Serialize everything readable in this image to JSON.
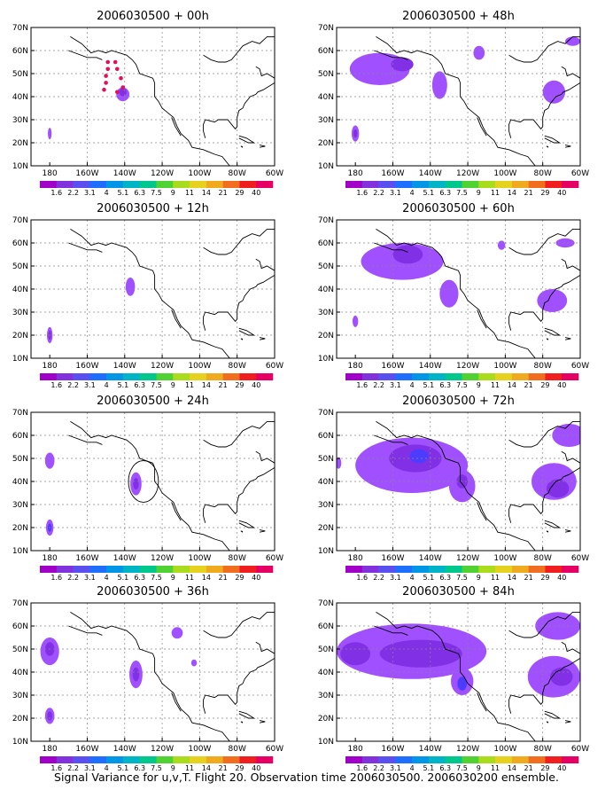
{
  "caption": "Signal Variance for u,v,T. Flight 20. Observation time 2006030500. 2006030200 ensemble.",
  "axes": {
    "x_ticks": [
      "180",
      "160W",
      "140W",
      "120W",
      "100W",
      "80W",
      "60W"
    ],
    "x_values": [
      180,
      200,
      220,
      240,
      260,
      280,
      300
    ],
    "y_ticks": [
      "10N",
      "20N",
      "30N",
      "40N",
      "50N",
      "60N",
      "70N"
    ],
    "y_values": [
      10,
      20,
      30,
      40,
      50,
      60,
      70
    ],
    "xlim": [
      170,
      300
    ],
    "ylim": [
      10,
      70
    ],
    "grid": true
  },
  "colorbar": {
    "labels": [
      "1.6",
      "2.2",
      "3.1",
      "4",
      "5.1",
      "6.3",
      "7.5",
      "9",
      "11",
      "14",
      "21",
      "29",
      "40"
    ],
    "colors": [
      "#a000c8",
      "#8232dc",
      "#5a50f0",
      "#1e6eff",
      "#0096e6",
      "#00b4c8",
      "#00c88c",
      "#50d232",
      "#aadc1e",
      "#e6d21e",
      "#f0aa1e",
      "#f06e1e",
      "#f01e1e",
      "#e60064"
    ]
  },
  "chart_data": [
    {
      "type": "heatmap",
      "title": "2006030500 + 00h",
      "blobs": [
        {
          "lon": 180,
          "lat": 24,
          "rx": 1,
          "ry": 2.5,
          "level": 1
        },
        {
          "lon": 219,
          "lat": 41,
          "rx": 3.5,
          "ry": 3,
          "level": 1
        },
        {
          "lon": 219,
          "lat": 42,
          "rx": 2,
          "ry": 1.8,
          "level": 2
        }
      ],
      "markers": [
        {
          "lon": 211,
          "lat": 55
        },
        {
          "lon": 211,
          "lat": 52
        },
        {
          "lon": 210,
          "lat": 49
        },
        {
          "lon": 210,
          "lat": 46
        },
        {
          "lon": 209,
          "lat": 43
        },
        {
          "lon": 215,
          "lat": 55
        },
        {
          "lon": 216,
          "lat": 52
        },
        {
          "lon": 218,
          "lat": 48
        },
        {
          "lon": 219,
          "lat": 44
        },
        {
          "lon": 216,
          "lat": 42
        }
      ]
    },
    {
      "type": "heatmap",
      "title": "2006030500 + 12h",
      "blobs": [
        {
          "lon": 180,
          "lat": 20,
          "rx": 1.5,
          "ry": 3.5,
          "level": 1
        },
        {
          "lon": 180,
          "lat": 20,
          "rx": 0.8,
          "ry": 2,
          "level": 2
        },
        {
          "lon": 223,
          "lat": 41,
          "rx": 2.5,
          "ry": 4,
          "level": 1
        }
      ],
      "markers": []
    },
    {
      "type": "heatmap",
      "title": "2006030500 + 24h",
      "blobs": [
        {
          "lon": 180,
          "lat": 20,
          "rx": 2,
          "ry": 3.5,
          "level": 1
        },
        {
          "lon": 180,
          "lat": 20,
          "rx": 1,
          "ry": 1.8,
          "level": 3
        },
        {
          "lon": 180,
          "lat": 49,
          "rx": 2.5,
          "ry": 3.5,
          "level": 1
        },
        {
          "lon": 226,
          "lat": 39,
          "rx": 3,
          "ry": 5,
          "level": 1
        },
        {
          "lon": 226,
          "lat": 39,
          "rx": 1.5,
          "ry": 2.5,
          "level": 2
        }
      ],
      "markers": [],
      "circle": {
        "lon": 230,
        "lat": 40,
        "rx": 8,
        "ry": 9
      }
    },
    {
      "type": "heatmap",
      "title": "2006030500 + 36h",
      "blobs": [
        {
          "lon": 180,
          "lat": 21,
          "rx": 2.5,
          "ry": 3.5,
          "level": 1
        },
        {
          "lon": 180,
          "lat": 21,
          "rx": 1.3,
          "ry": 2,
          "level": 2
        },
        {
          "lon": 180,
          "lat": 49,
          "rx": 5,
          "ry": 6,
          "level": 1
        },
        {
          "lon": 180,
          "lat": 50,
          "rx": 2.5,
          "ry": 3,
          "level": 2
        },
        {
          "lon": 226,
          "lat": 39,
          "rx": 3.5,
          "ry": 6,
          "level": 1
        },
        {
          "lon": 226,
          "lat": 39,
          "rx": 1.8,
          "ry": 3,
          "level": 2
        },
        {
          "lon": 248,
          "lat": 57,
          "rx": 3,
          "ry": 2.5,
          "level": 1
        },
        {
          "lon": 257,
          "lat": 44,
          "rx": 1.5,
          "ry": 1.5,
          "level": 1
        }
      ],
      "markers": []
    },
    {
      "type": "heatmap",
      "title": "2006030500 + 48h",
      "blobs": [
        {
          "lon": 180,
          "lat": 24,
          "rx": 2,
          "ry": 3.5,
          "level": 1
        },
        {
          "lon": 180,
          "lat": 24,
          "rx": 1,
          "ry": 1.8,
          "level": 2
        },
        {
          "lon": 193,
          "lat": 52,
          "rx": 16,
          "ry": 7,
          "level": 1
        },
        {
          "lon": 205,
          "lat": 54,
          "rx": 6,
          "ry": 3,
          "level": 2
        },
        {
          "lon": 225,
          "lat": 45,
          "rx": 4,
          "ry": 6,
          "level": 1
        },
        {
          "lon": 246,
          "lat": 59,
          "rx": 3,
          "ry": 3,
          "level": 1
        },
        {
          "lon": 286,
          "lat": 42,
          "rx": 6,
          "ry": 5,
          "level": 1
        },
        {
          "lon": 296,
          "lat": 64,
          "rx": 4,
          "ry": 2,
          "level": 1
        }
      ],
      "markers": []
    },
    {
      "type": "heatmap",
      "title": "2006030500 + 60h",
      "blobs": [
        {
          "lon": 180,
          "lat": 26,
          "rx": 1.5,
          "ry": 2.5,
          "level": 1
        },
        {
          "lon": 205,
          "lat": 52,
          "rx": 22,
          "ry": 8,
          "level": 1
        },
        {
          "lon": 208,
          "lat": 55,
          "rx": 8,
          "ry": 4,
          "level": 2
        },
        {
          "lon": 230,
          "lat": 38,
          "rx": 5,
          "ry": 6,
          "level": 1
        },
        {
          "lon": 258,
          "lat": 59,
          "rx": 2,
          "ry": 2,
          "level": 1
        },
        {
          "lon": 285,
          "lat": 35,
          "rx": 8,
          "ry": 5,
          "level": 1
        },
        {
          "lon": 292,
          "lat": 60,
          "rx": 5,
          "ry": 2,
          "level": 1
        }
      ],
      "markers": []
    },
    {
      "type": "heatmap",
      "title": "2006030500 + 72h",
      "blobs": [
        {
          "lon": 210,
          "lat": 47,
          "rx": 30,
          "ry": 12,
          "level": 1
        },
        {
          "lon": 212,
          "lat": 50,
          "rx": 14,
          "ry": 6,
          "level": 2
        },
        {
          "lon": 214,
          "lat": 51,
          "rx": 5,
          "ry": 3,
          "level": 3
        },
        {
          "lon": 237,
          "lat": 38,
          "rx": 7,
          "ry": 7,
          "level": 1
        },
        {
          "lon": 237,
          "lat": 40,
          "rx": 3,
          "ry": 3,
          "level": 2
        },
        {
          "lon": 286,
          "lat": 40,
          "rx": 12,
          "ry": 8,
          "level": 1
        },
        {
          "lon": 288,
          "lat": 37,
          "rx": 6,
          "ry": 4,
          "level": 2
        },
        {
          "lon": 294,
          "lat": 60,
          "rx": 9,
          "ry": 5,
          "level": 1
        },
        {
          "lon": 171,
          "lat": 48,
          "rx": 1.5,
          "ry": 2.5,
          "level": 1
        }
      ],
      "markers": []
    },
    {
      "type": "heatmap",
      "title": "2006030500 + 84h",
      "blobs": [
        {
          "lon": 210,
          "lat": 49,
          "rx": 40,
          "ry": 12,
          "level": 1
        },
        {
          "lon": 215,
          "lat": 48,
          "rx": 22,
          "ry": 6,
          "level": 2
        },
        {
          "lon": 180,
          "lat": 48,
          "rx": 8,
          "ry": 5,
          "level": 2
        },
        {
          "lon": 237,
          "lat": 36,
          "rx": 6,
          "ry": 6,
          "level": 1
        },
        {
          "lon": 237,
          "lat": 35,
          "rx": 2.5,
          "ry": 3,
          "level": 3
        },
        {
          "lon": 286,
          "lat": 38,
          "rx": 14,
          "ry": 9,
          "level": 1
        },
        {
          "lon": 290,
          "lat": 38,
          "rx": 6,
          "ry": 4,
          "level": 2
        },
        {
          "lon": 288,
          "lat": 60,
          "rx": 12,
          "ry": 6,
          "level": 1
        }
      ],
      "markers": []
    }
  ]
}
